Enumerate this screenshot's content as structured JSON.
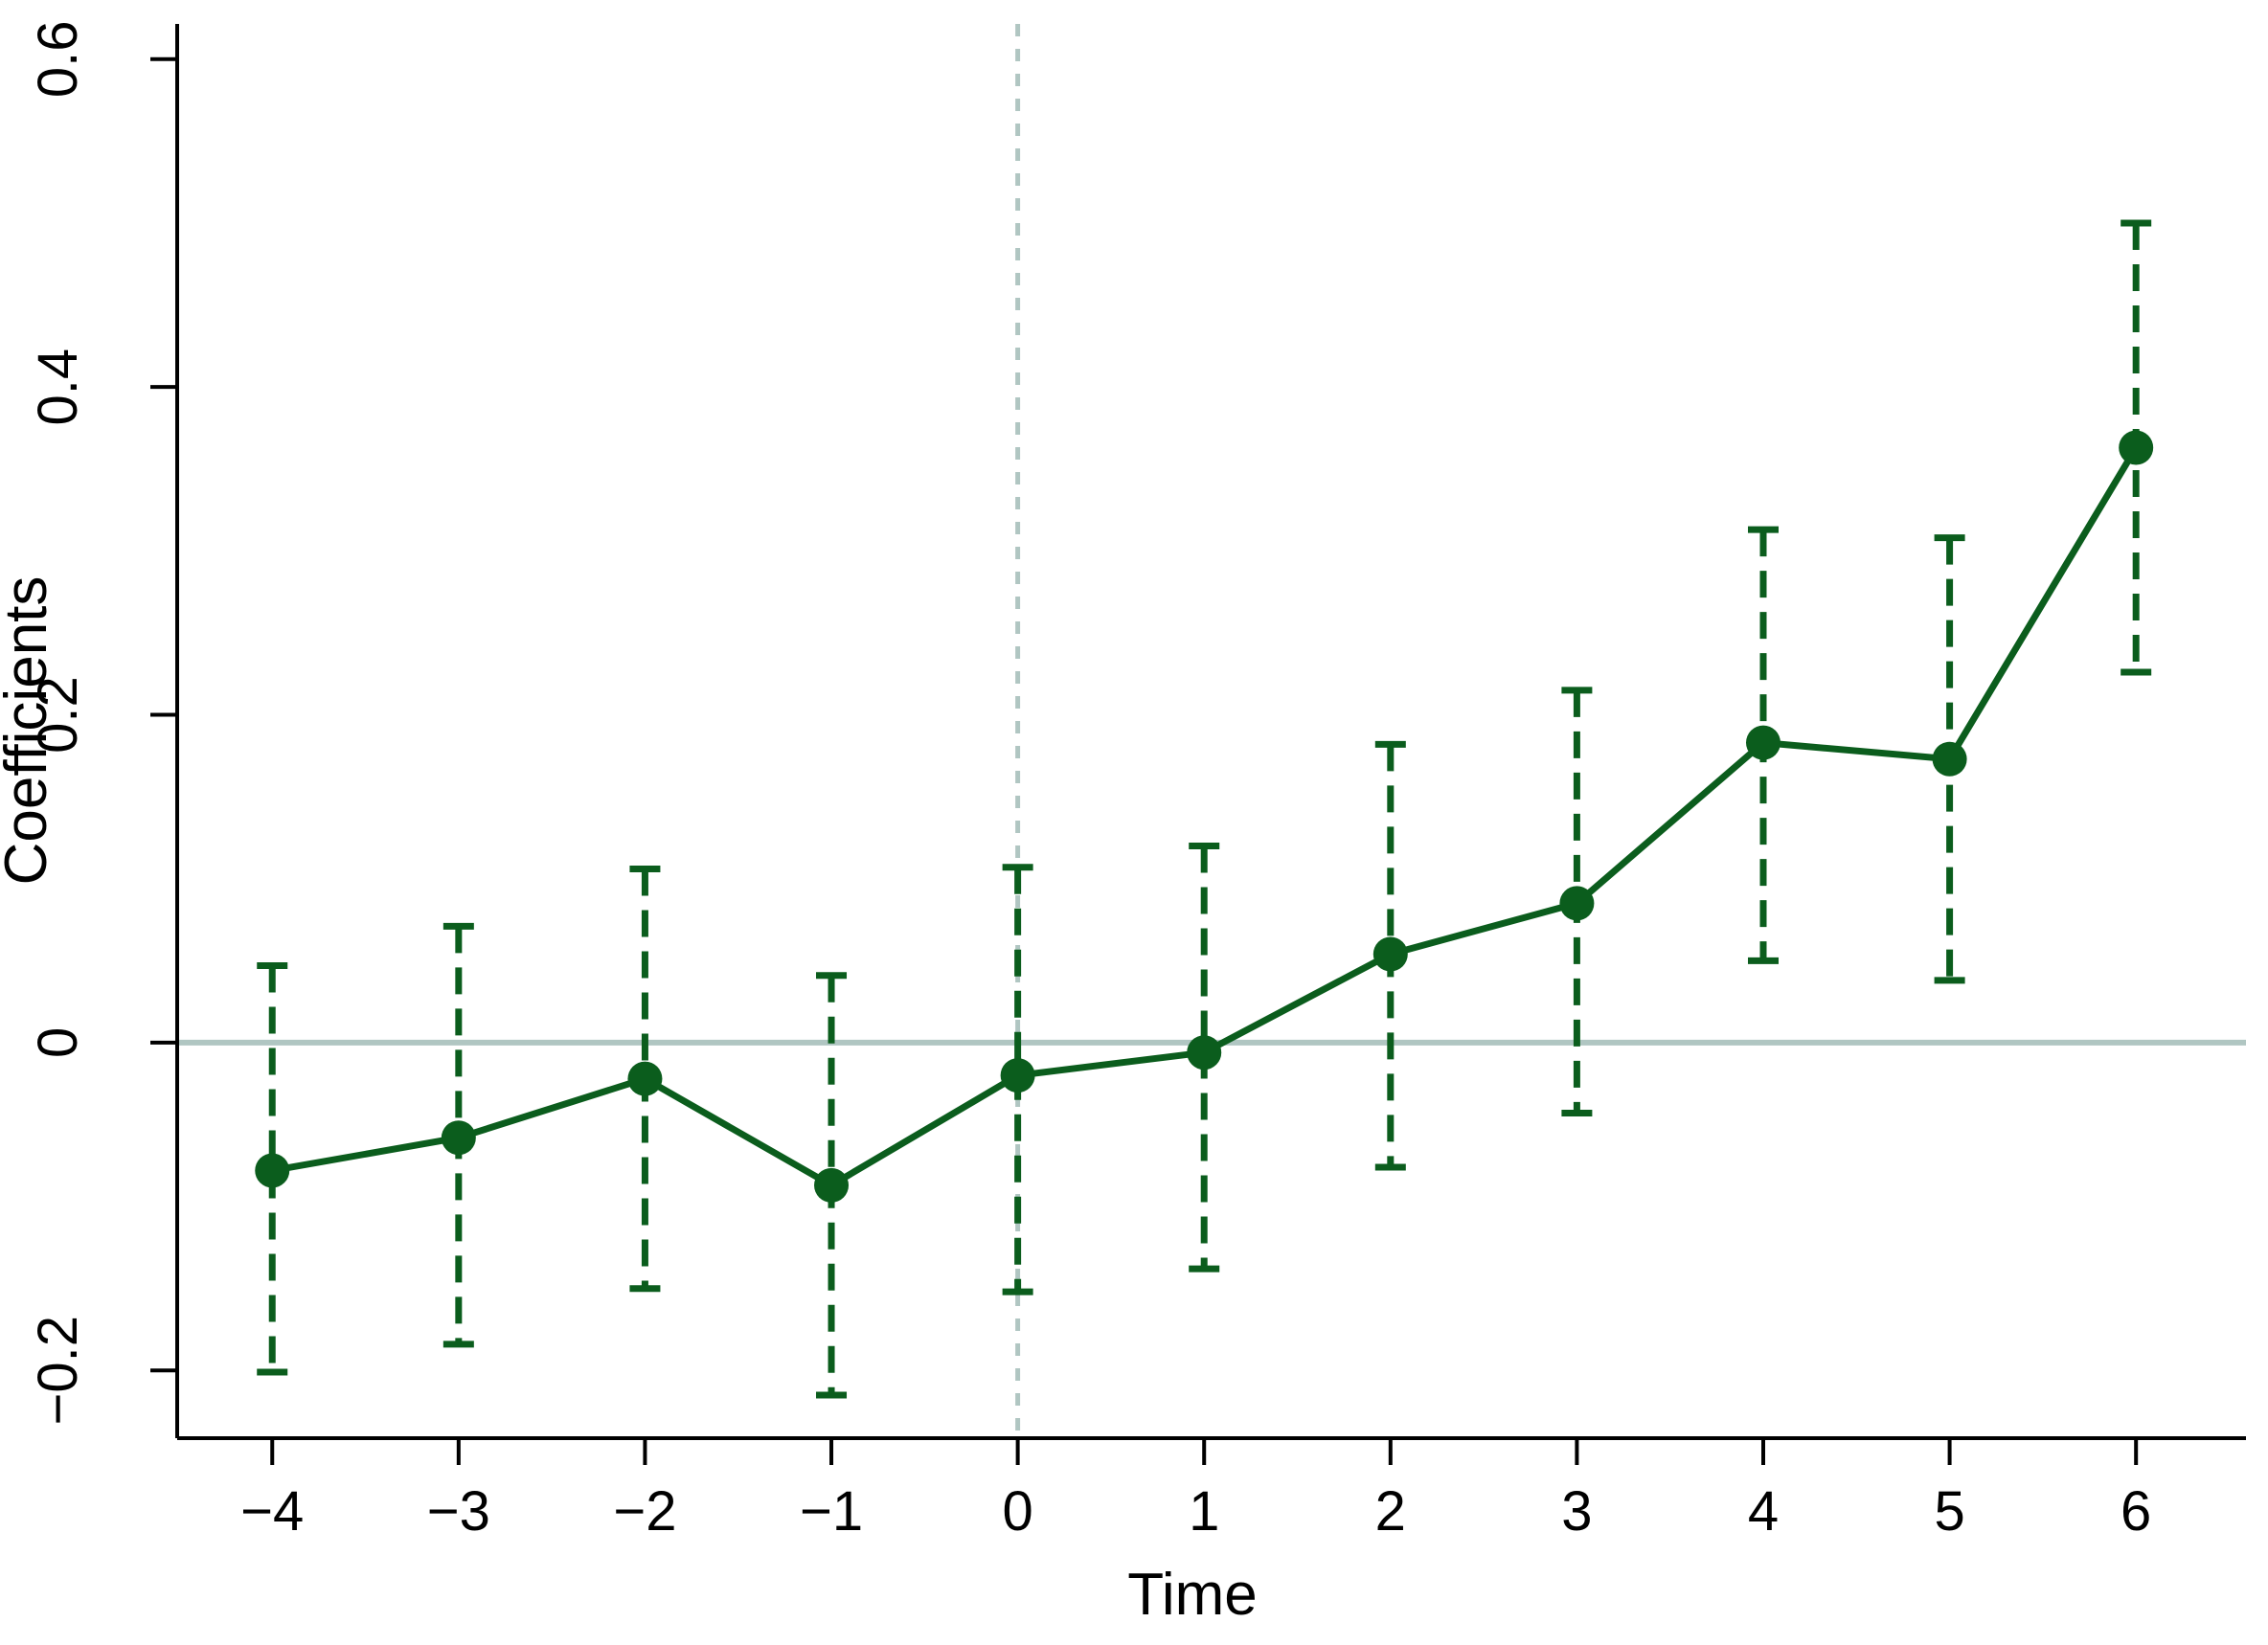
{
  "figure": {
    "background": "#ffffff"
  },
  "chart_data": {
    "type": "line",
    "subtype": "event-study-coefficient-plot-with-error-bars",
    "title": "",
    "xlabel": "Time",
    "ylabel": "Coefficients",
    "x": [
      -4,
      -3,
      -2,
      -1,
      0,
      1,
      2,
      3,
      4,
      5,
      6
    ],
    "series": [
      {
        "name": "coefficients",
        "estimates": [
          -0.078,
          -0.058,
          -0.022,
          -0.087,
          -0.02,
          -0.006,
          0.054,
          0.085,
          0.183,
          0.173,
          0.363
        ],
        "ci_low": [
          -0.201,
          -0.184,
          -0.15,
          -0.215,
          -0.152,
          -0.138,
          -0.076,
          -0.043,
          0.05,
          0.038,
          0.226
        ],
        "ci_high": [
          0.047,
          0.071,
          0.106,
          0.041,
          0.107,
          0.12,
          0.182,
          0.215,
          0.313,
          0.308,
          0.5
        ]
      }
    ],
    "x_tick_values": [
      -4,
      -3,
      -2,
      -1,
      0,
      1,
      2,
      3,
      4,
      5,
      6
    ],
    "x_tick_labels": [
      "−4",
      "−3",
      "−2",
      "−1",
      "0",
      "1",
      "2",
      "3",
      "4",
      "5",
      "6"
    ],
    "y_tick_values": [
      -0.2,
      0,
      0.2,
      0.4,
      0.6
    ],
    "y_tick_labels": [
      "−0.2",
      "0",
      "0.2",
      "0.4",
      "0.6"
    ],
    "xlim": [
      -4.51,
      6.59
    ],
    "ylim": [
      -0.2413,
      0.6215
    ],
    "grid": false,
    "legend": "none",
    "reference_lines": {
      "horizontal_y": 0,
      "vertical_x": 0
    },
    "colors": {
      "series_green": "#0b5d1d",
      "reference_gray": "#b0c6c2",
      "axis_black": "#000000",
      "background": "#ffffff"
    }
  }
}
